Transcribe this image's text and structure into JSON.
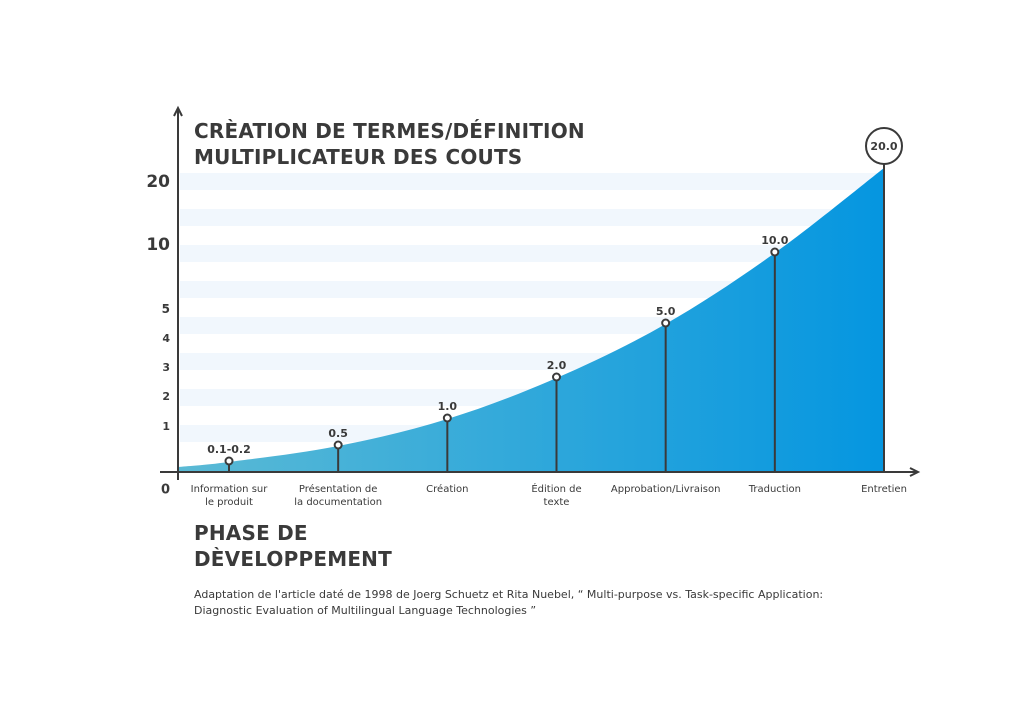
{
  "chart_data": {
    "type": "area",
    "title_lines": [
      "CRÈATION DE TERMES/DÉFINITION",
      "MULTIPLICATEUR DES COUTS"
    ],
    "xlabel_lines": [
      "PHASE DE",
      "DÈVELOPPEMENT"
    ],
    "ylabel": "",
    "y_ticks": [
      {
        "value": 0,
        "label": "0"
      },
      {
        "value": 1,
        "label": "1"
      },
      {
        "value": 2,
        "label": "2"
      },
      {
        "value": 3,
        "label": "3"
      },
      {
        "value": 4,
        "label": "4"
      },
      {
        "value": 5,
        "label": "5"
      },
      {
        "value": 10,
        "label": "10"
      },
      {
        "value": 20,
        "label": "20"
      }
    ],
    "categories": [
      {
        "lines": [
          "Information sur",
          "le produit"
        ]
      },
      {
        "lines": [
          "Présentation de",
          "la documentation"
        ]
      },
      {
        "lines": [
          "Création"
        ]
      },
      {
        "lines": [
          "Édition de",
          "texte"
        ]
      },
      {
        "lines": [
          "Approbation/Livraison"
        ]
      },
      {
        "lines": [
          "Traduction"
        ]
      },
      {
        "lines": [
          "Entretien"
        ]
      }
    ],
    "values": [
      0.15,
      0.5,
      1.0,
      2.0,
      5.0,
      10.0,
      20.0
    ],
    "value_labels": [
      "0.1-0.2",
      "0.5",
      "1.0",
      "2.0",
      "5.0",
      "10.0",
      "20.0"
    ],
    "highlight_index": 6,
    "axis_scale": "non-linear (piecewise)",
    "grid": "alternating horizontal bands",
    "colors": {
      "area_start": "#5bbad5",
      "area_end": "#0596e0",
      "band": "#f1f7fd",
      "axis": "#3a3a3a",
      "text": "#3a3a3a"
    }
  },
  "source_lines": [
    "Adaptation de l'article daté de 1998 de Joerg Schuetz et Rita Nuebel, “ Multi-purpose vs. Task-specific Application:",
    "Diagnostic Evaluation of Multilingual Language Technologies ”"
  ]
}
